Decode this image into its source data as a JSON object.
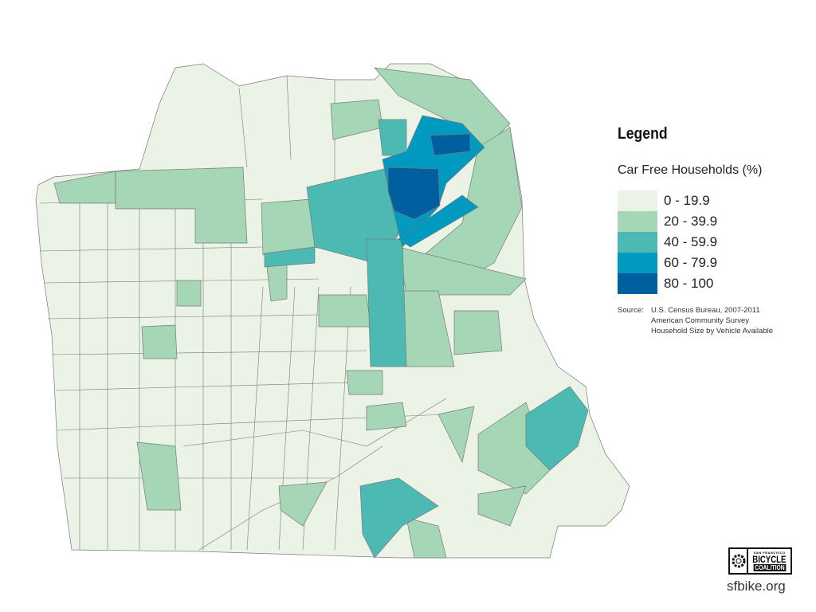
{
  "legend": {
    "title": "Legend",
    "subtitle": "Car Free Households (%)",
    "classes": [
      {
        "label": "0 - 19.9",
        "color": "#eaf3e5"
      },
      {
        "label": "20 - 39.9",
        "color": "#a5d6b5"
      },
      {
        "label": "40 - 59.9",
        "color": "#4cb9b2"
      },
      {
        "label": "60 - 79.9",
        "color": "#0099bf"
      },
      {
        "label": "80 - 100",
        "color": "#005f9e"
      }
    ]
  },
  "source": {
    "key": "Source:",
    "lines": [
      "U.S. Census Bureau, 2007-2011",
      "American Community Survey",
      "Household Size by Vehicle Available"
    ]
  },
  "logo": {
    "top": "SAN FRANCISCO",
    "main": "BICYCLE",
    "sub": "COALITION"
  },
  "url": "sfbike.org",
  "boundary_color": "#7a7a7a"
}
